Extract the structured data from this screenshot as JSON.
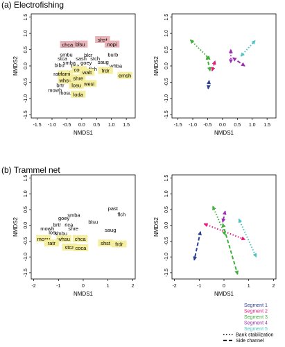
{
  "panels": [
    {
      "label": "(a) Electrofishing"
    },
    {
      "label": "(b) Trammel net"
    }
  ],
  "colors": {
    "highlight_red": "#e8b4b8",
    "highlight_yellow": "#f4ee9e",
    "segment_1": "#2c3e91",
    "segment_2": "#e5197a",
    "segment_3": "#3fae3a",
    "segment_4": "#9b2fb0",
    "segment_5": "#4fc3c0"
  },
  "legend": {
    "segments": [
      {
        "label": "Segment 1",
        "color": "#2c3e91"
      },
      {
        "label": "Segment 2",
        "color": "#e5197a"
      },
      {
        "label": "Segment 3",
        "color": "#3fae3a"
      },
      {
        "label": "Segment 4",
        "color": "#9b2fb0"
      },
      {
        "label": "Segment 5",
        "color": "#4fc3c0"
      }
    ],
    "line_types": [
      {
        "label": "Bank stabilization",
        "style": "dotted"
      },
      {
        "label": "Side channel",
        "style": "dashed"
      }
    ]
  },
  "chart_data": [
    {
      "type": "scatter",
      "title": "",
      "xlabel": "NMDS1",
      "ylabel": "NMDS2",
      "xlim": [
        -1.7,
        1.8
      ],
      "ylim": [
        -1.6,
        1.6
      ],
      "xticks": [
        -1.5,
        -1.0,
        -0.5,
        0.0,
        0.5,
        1.0,
        1.5
      ],
      "yticks": [
        -1.5,
        -1.0,
        -0.5,
        0.0,
        0.5,
        1.0,
        1.5
      ],
      "tick_labels_x": [
        "-1.5",
        "-1.0",
        "-0.5",
        "0.0",
        "0.5",
        "1.0",
        "1.5"
      ],
      "tick_labels_y": [
        "-1.5",
        "-1.0",
        "-0.5",
        "0.0",
        "0.5",
        "1.0",
        "1.5"
      ],
      "species": [
        {
          "name": "chca",
          "x": -0.48,
          "y": 0.65,
          "hl": "red"
        },
        {
          "name": "blsu",
          "x": -0.05,
          "y": 0.66,
          "hl": "red"
        },
        {
          "name": "shst",
          "x": 0.7,
          "y": 0.8,
          "hl": "red"
        },
        {
          "name": "nopi",
          "x": 1.02,
          "y": 0.66,
          "hl": "red"
        },
        {
          "name": "smbu",
          "x": -0.52,
          "y": 0.34,
          "hl": ""
        },
        {
          "name": "blcr",
          "x": 0.22,
          "y": 0.33,
          "hl": ""
        },
        {
          "name": "burb",
          "x": 1.05,
          "y": 0.34,
          "hl": ""
        },
        {
          "name": "stca",
          "x": -0.65,
          "y": 0.22,
          "hl": ""
        },
        {
          "name": "sash",
          "x": -0.02,
          "y": 0.22,
          "hl": ""
        },
        {
          "name": "stch",
          "x": 0.45,
          "y": 0.22,
          "hl": ""
        },
        {
          "name": "smba",
          "x": -0.42,
          "y": 0.1,
          "hl": ""
        },
        {
          "name": "goey",
          "x": 0.15,
          "y": 0.1,
          "hl": ""
        },
        {
          "name": "saug",
          "x": 0.72,
          "y": 0.12,
          "hl": ""
        },
        {
          "name": "bibu",
          "x": -0.75,
          "y": 0.02,
          "hl": ""
        },
        {
          "name": "rica",
          "x": -0.22,
          "y": 0.0,
          "hl": ""
        },
        {
          "name": "whba",
          "x": 1.15,
          "y": 0.0,
          "hl": ""
        },
        {
          "name": "coca",
          "x": -0.08,
          "y": -0.12,
          "hl": "yellow"
        },
        {
          "name": "flch",
          "x": 0.38,
          "y": -0.1,
          "hl": ""
        },
        {
          "name": "fami",
          "x": -0.55,
          "y": -0.25,
          "hl": "yellow"
        },
        {
          "name": "walt",
          "x": 0.18,
          "y": -0.2,
          "hl": "yellow"
        },
        {
          "name": "ratr",
          "x": -0.82,
          "y": -0.25,
          "hl": ""
        },
        {
          "name": "frdr",
          "x": 0.8,
          "y": -0.15,
          "hl": "yellow"
        },
        {
          "name": "whsu",
          "x": -0.55,
          "y": -0.45,
          "hl": "yellow"
        },
        {
          "name": "shre",
          "x": -0.12,
          "y": -0.38,
          "hl": "yellow"
        },
        {
          "name": "emsh",
          "x": 1.45,
          "y": -0.3,
          "hl": "yellow"
        },
        {
          "name": "brtr",
          "x": -0.72,
          "y": -0.6,
          "hl": ""
        },
        {
          "name": "losu",
          "x": -0.18,
          "y": -0.6,
          "hl": "yellow"
        },
        {
          "name": "wesi",
          "x": 0.25,
          "y": -0.55,
          "hl": "yellow"
        },
        {
          "name": "mowh",
          "x": -0.9,
          "y": -0.75,
          "hl": ""
        },
        {
          "name": "mosu",
          "x": -0.55,
          "y": -0.83,
          "hl": ""
        },
        {
          "name": "loda",
          "x": -0.12,
          "y": -0.88,
          "hl": "yellow"
        }
      ]
    },
    {
      "type": "arrows",
      "title": "",
      "xlabel": "NMDS1",
      "ylabel": "NMDS2",
      "xlim": [
        -1.7,
        1.8
      ],
      "ylim": [
        -1.6,
        1.6
      ],
      "xticks": [
        -1.5,
        -1.0,
        -0.5,
        0.0,
        0.5,
        1.0,
        1.5
      ],
      "yticks": [
        -1.5,
        -1.0,
        -0.5,
        0.0,
        0.5,
        1.0,
        1.5
      ],
      "tick_labels_x": [
        "-1.5",
        "-1.0",
        "-0.5",
        "0.0",
        "0.5",
        "1.0",
        "1.5"
      ],
      "tick_labels_y": [
        "-1.5",
        "-1.0",
        "-0.5",
        "0.0",
        "0.5",
        "1.0",
        "1.5"
      ],
      "arrows": [
        {
          "segment": 1,
          "style": "dashed",
          "x1": -0.45,
          "y1": -0.45,
          "x2": -0.48,
          "y2": -0.7
        },
        {
          "segment": 2,
          "style": "dotted",
          "x1": -0.35,
          "y1": -0.15,
          "x2": -0.25,
          "y2": 0.15
        },
        {
          "segment": 3,
          "style": "dotted",
          "x1": -1.08,
          "y1": 0.8,
          "x2": -0.42,
          "y2": 0.2
        },
        {
          "segment": 3,
          "style": "dashed",
          "x1": -0.52,
          "y1": 0.3,
          "x2": -0.42,
          "y2": -0.15
        },
        {
          "segment": 4,
          "style": "dotted",
          "x1": 0.28,
          "y1": 0.5,
          "x2": 0.28,
          "y2": 0.1
        },
        {
          "segment": 4,
          "style": "dashed",
          "x1": 0.35,
          "y1": 0.25,
          "x2": 0.75,
          "y2": 0.0
        },
        {
          "segment": 5,
          "style": "dotted",
          "x1": 0.62,
          "y1": 0.3,
          "x2": 1.1,
          "y2": 0.78
        }
      ]
    },
    {
      "type": "scatter",
      "title": "",
      "xlabel": "NMDS1",
      "ylabel": "NMDS2",
      "xlim": [
        -2.1,
        2.1
      ],
      "ylim": [
        -1.7,
        1.6
      ],
      "xticks": [
        -2,
        -1,
        0,
        1,
        2
      ],
      "yticks": [
        -1.5,
        -1.0,
        -0.5,
        0.0,
        0.5,
        1.0,
        1.5
      ],
      "tick_labels_x": [
        "-2",
        "-1",
        "0",
        "1",
        "2"
      ],
      "tick_labels_y": [
        "-1.5",
        "-1.0",
        "-0.5",
        "0.0",
        "0.5",
        "1.0",
        "1.5"
      ],
      "species": [
        {
          "name": "past",
          "x": 1.2,
          "y": 0.53,
          "hl": ""
        },
        {
          "name": "flch",
          "x": 1.55,
          "y": 0.35,
          "hl": ""
        },
        {
          "name": "smba",
          "x": -0.38,
          "y": 0.32,
          "hl": ""
        },
        {
          "name": "goey",
          "x": -0.78,
          "y": 0.23,
          "hl": ""
        },
        {
          "name": "blsu",
          "x": 0.4,
          "y": 0.1,
          "hl": ""
        },
        {
          "name": "brtr",
          "x": -1.05,
          "y": 0.02,
          "hl": ""
        },
        {
          "name": "rica",
          "x": -0.58,
          "y": 0.02,
          "hl": ""
        },
        {
          "name": "mowh",
          "x": -1.45,
          "y": -0.1,
          "hl": ""
        },
        {
          "name": "shre",
          "x": -0.4,
          "y": -0.1,
          "hl": ""
        },
        {
          "name": "saug",
          "x": 1.1,
          "y": -0.15,
          "hl": ""
        },
        {
          "name": "losu",
          "x": -1.2,
          "y": -0.23,
          "hl": ""
        },
        {
          "name": "smbu",
          "x": -0.9,
          "y": -0.26,
          "hl": ""
        },
        {
          "name": "mosu",
          "x": -1.6,
          "y": -0.43,
          "hl": "yellow"
        },
        {
          "name": "whsu",
          "x": -0.78,
          "y": -0.43,
          "hl": "yellow"
        },
        {
          "name": "chca",
          "x": -0.12,
          "y": -0.43,
          "hl": "yellow"
        },
        {
          "name": "ratr",
          "x": -1.28,
          "y": -0.57,
          "hl": "yellow"
        },
        {
          "name": "stca",
          "x": -0.55,
          "y": -0.7,
          "hl": "yellow"
        },
        {
          "name": "coca",
          "x": -0.1,
          "y": -0.72,
          "hl": "yellow"
        },
        {
          "name": "shst",
          "x": 0.9,
          "y": -0.57,
          "hl": "yellow"
        },
        {
          "name": "frdr",
          "x": 1.45,
          "y": -0.6,
          "hl": "yellow"
        }
      ]
    },
    {
      "type": "arrows",
      "title": "",
      "xlabel": "NMDS1",
      "ylabel": "NMDS2",
      "xlim": [
        -2.1,
        2.1
      ],
      "ylim": [
        -1.7,
        1.6
      ],
      "xticks": [
        -2,
        -1,
        0,
        1,
        2
      ],
      "yticks": [
        -1.5,
        -1.0,
        -0.5,
        0.0,
        0.5,
        1.0,
        1.5
      ],
      "tick_labels_x": [
        "-2",
        "-1",
        "0",
        "1",
        "2"
      ],
      "tick_labels_y": [
        "-1.5",
        "-1.0",
        "-0.5",
        "0.0",
        "0.5",
        "1.0",
        "1.5"
      ],
      "arrows": [
        {
          "segment": 1,
          "style": "dashed",
          "x1": -0.95,
          "y1": -0.2,
          "x2": -1.2,
          "y2": -1.1
        },
        {
          "segment": 2,
          "style": "dotted",
          "x1": -0.8,
          "y1": 0.05,
          "x2": 0.85,
          "y2": -0.45
        },
        {
          "segment": 3,
          "style": "dotted",
          "x1": -0.45,
          "y1": 0.6,
          "x2": 0.05,
          "y2": -0.3
        },
        {
          "segment": 3,
          "style": "dashed",
          "x1": -0.05,
          "y1": 0.05,
          "x2": 0.55,
          "y2": -1.55
        },
        {
          "segment": 4,
          "style": "dashed",
          "x1": 0.05,
          "y1": 0.45,
          "x2": -0.05,
          "y2": 0.1
        },
        {
          "segment": 5,
          "style": "dotted",
          "x1": 0.6,
          "y1": 0.2,
          "x2": 1.3,
          "y2": -1.0
        }
      ]
    }
  ]
}
